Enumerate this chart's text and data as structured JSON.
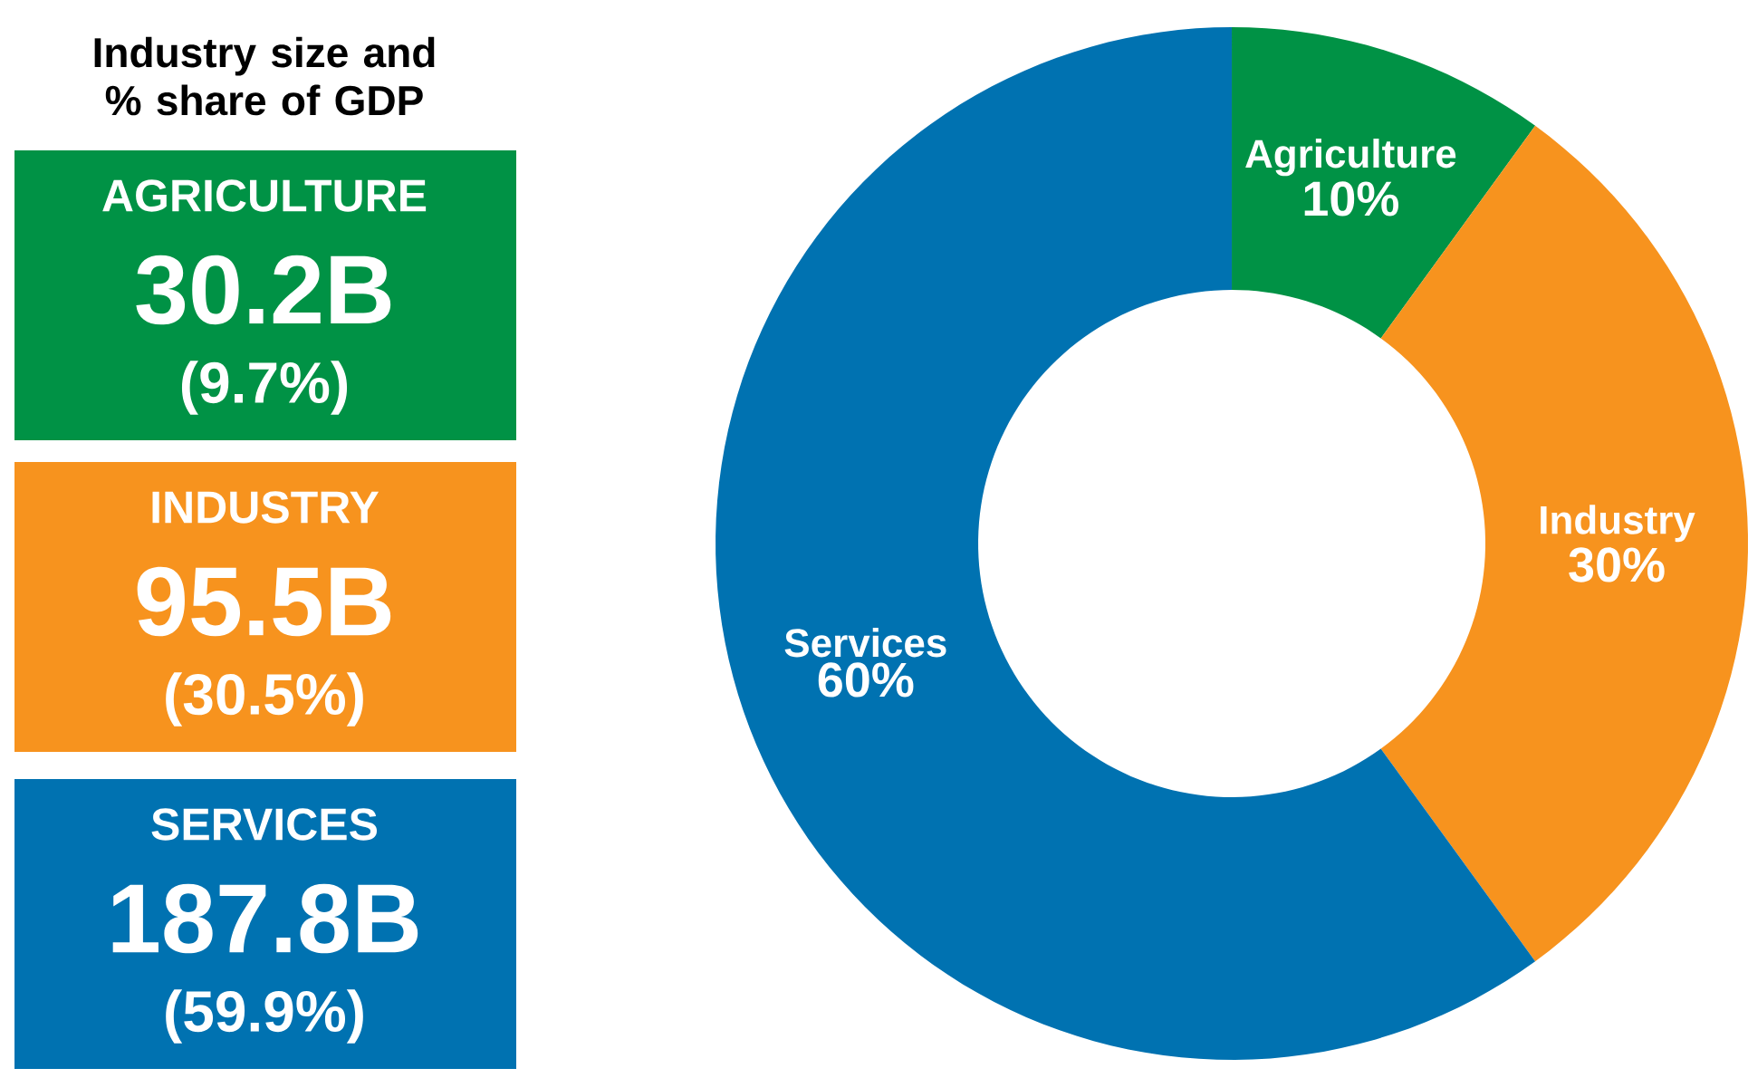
{
  "chart_data": [
    {
      "type": "other",
      "title": "Industry size and % share of GDP",
      "categories": [
        "AGRICULTURE",
        "INDUSTRY",
        "SERVICES"
      ],
      "value_labels": [
        "30.2B",
        "95.5B",
        "187.8B"
      ],
      "annotations": [
        "(9.7%)",
        "(30.5%)",
        "(59.9%)"
      ],
      "colors": [
        "#009245",
        "#f7931e",
        "#0072b1"
      ]
    },
    {
      "type": "donut",
      "categories": [
        "Agriculture",
        "Industry",
        "Services"
      ],
      "values": [
        10,
        30,
        60
      ],
      "value_labels": [
        "10%",
        "30%",
        "60%"
      ],
      "colors": [
        "#009245",
        "#f7931e",
        "#0072b1"
      ]
    }
  ]
}
